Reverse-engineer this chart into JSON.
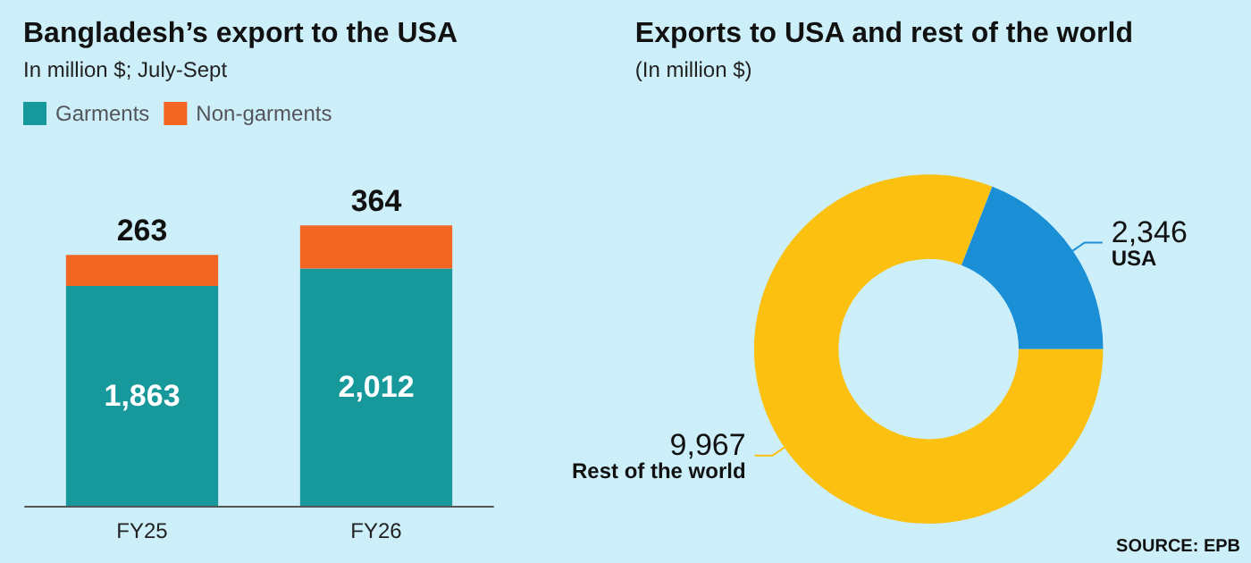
{
  "chart_data": [
    {
      "type": "bar",
      "title": "Bangladesh’s export to the USA",
      "subtitle": "In million $; July-Sept",
      "categories": [
        "FY25",
        "FY26"
      ],
      "stacked": true,
      "legend": "top left",
      "series": [
        {
          "name": "Garments",
          "color": "#17999b",
          "values": [
            1863,
            2012
          ],
          "value_labels": [
            "1,863",
            "2,012"
          ]
        },
        {
          "name": "Non-garments",
          "color": "#f26522",
          "values": [
            263,
            364
          ],
          "value_labels": [
            "263",
            "364"
          ]
        }
      ]
    },
    {
      "type": "donut",
      "title": "Exports to USA and rest of the world",
      "subtitle": "(In million $)",
      "categories": [
        "Rest of the world",
        "USA"
      ],
      "values": [
        9967,
        2346
      ],
      "colors": [
        "#fcc010",
        "#1b8fd6"
      ],
      "value_labels": [
        "9,967",
        "2,346"
      ],
      "annotations": [
        "SOURCE: EPB"
      ]
    }
  ]
}
